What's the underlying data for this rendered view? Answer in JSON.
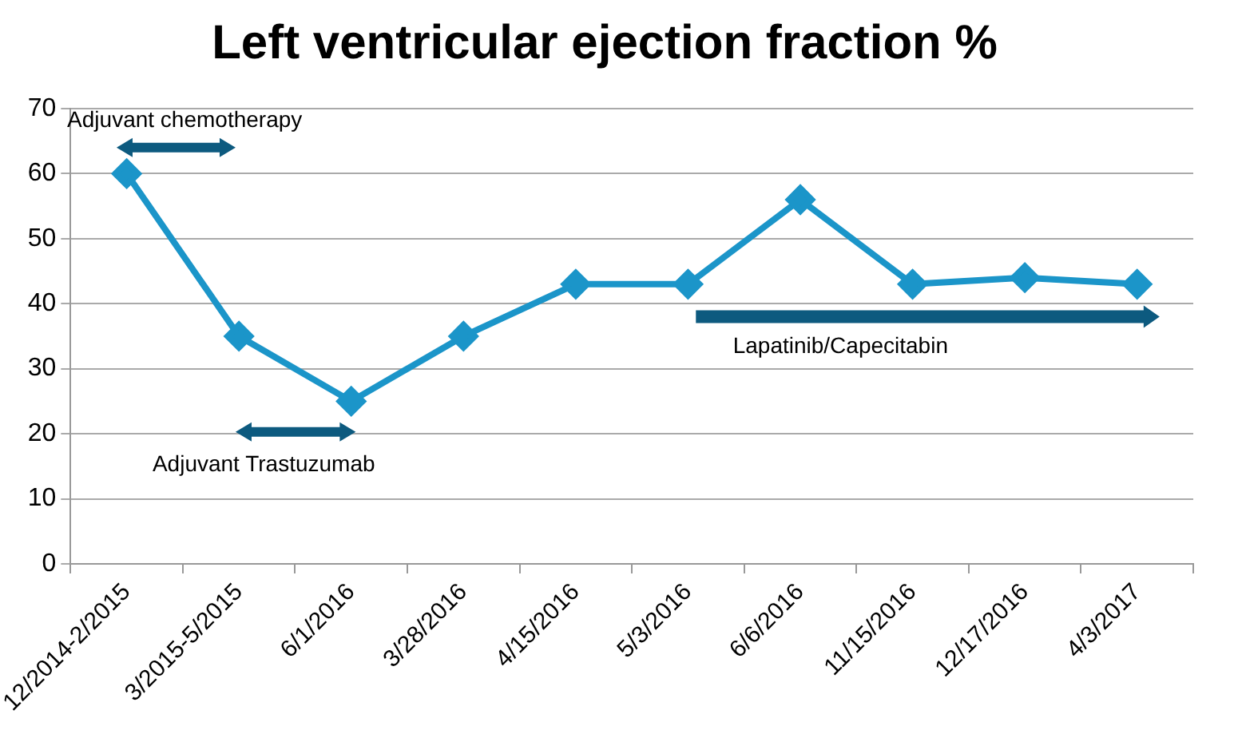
{
  "chart_data": {
    "type": "line",
    "title": "Left ventricular ejection fraction %",
    "categories": [
      "12/2014-2/2015",
      "3/2015-5/2015",
      "6/1/2016",
      "3/28/2016",
      "4/15/2016",
      "5/3/2016",
      "6/6/2016",
      "11/15/2016",
      "12/17/2016",
      "4/3/2017"
    ],
    "series": [
      {
        "color": "#1b95c9",
        "values": [
          60,
          35,
          25,
          35,
          43,
          43,
          56,
          43,
          44,
          43
        ]
      }
    ],
    "ylim": [
      0,
      70
    ],
    "yticks": [
      0,
      10,
      20,
      30,
      40,
      50,
      60,
      70
    ],
    "grid": "y",
    "legend": false,
    "marker": "diamond",
    "line_style": "solid",
    "annotations": [
      "Adjuvant chemotherapy",
      "Adjuvant Trastuzumab",
      "Lapatinib/Capecitabin"
    ]
  }
}
